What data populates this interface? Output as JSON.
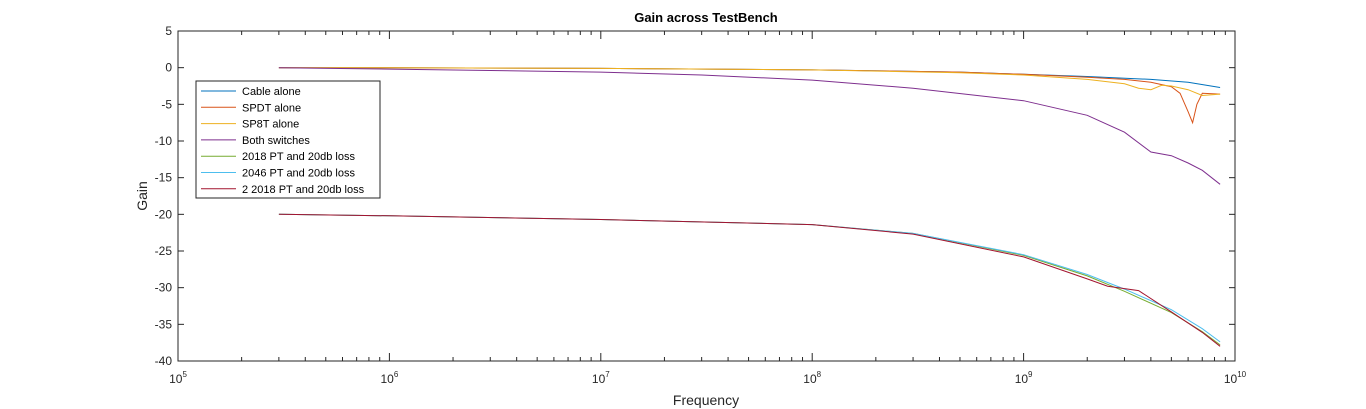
{
  "chart_data": {
    "type": "line",
    "title": "Gain across TestBench",
    "xlabel": "Frequency",
    "ylabel": "Gain",
    "xscale": "log",
    "xlim": [
      100000,
      10000000000
    ],
    "ylim": [
      -40,
      5
    ],
    "x_ticks": [
      {
        "value": 100000,
        "base": "10",
        "exp": "5"
      },
      {
        "value": 1000000,
        "base": "10",
        "exp": "6"
      },
      {
        "value": 10000000,
        "base": "10",
        "exp": "7"
      },
      {
        "value": 100000000,
        "base": "10",
        "exp": "8"
      },
      {
        "value": 1000000000,
        "base": "10",
        "exp": "9"
      },
      {
        "value": 10000000000,
        "base": "10",
        "exp": "10"
      }
    ],
    "y_ticks": [
      5,
      0,
      -5,
      -10,
      -15,
      -20,
      -25,
      -30,
      -35,
      -40
    ],
    "grid": false,
    "legend_position": "top-left",
    "series": [
      {
        "name": "Cable alone",
        "color": "#0072BD",
        "points": [
          [
            300000,
            0
          ],
          [
            1000000,
            0
          ],
          [
            10000000,
            -0.1
          ],
          [
            100000000,
            -0.3
          ],
          [
            500000000,
            -0.6
          ],
          [
            1000000000,
            -0.9
          ],
          [
            2000000000,
            -1.2
          ],
          [
            4000000000,
            -1.6
          ],
          [
            6000000000,
            -2.0
          ],
          [
            8500000000,
            -2.7
          ]
        ]
      },
      {
        "name": "SPDT alone",
        "color": "#D95319",
        "points": [
          [
            300000,
            0
          ],
          [
            1000000,
            0
          ],
          [
            10000000,
            -0.1
          ],
          [
            100000000,
            -0.3
          ],
          [
            500000000,
            -0.6
          ],
          [
            1000000000,
            -0.9
          ],
          [
            2000000000,
            -1.3
          ],
          [
            3000000000,
            -1.6
          ],
          [
            4000000000,
            -2.0
          ],
          [
            5000000000,
            -2.6
          ],
          [
            5500000000,
            -3.5
          ],
          [
            6000000000,
            -6.0
          ],
          [
            6300000000,
            -7.5
          ],
          [
            6600000000,
            -5.0
          ],
          [
            7000000000,
            -3.5
          ],
          [
            8500000000,
            -3.6
          ]
        ]
      },
      {
        "name": "SP8T alone",
        "color": "#EDB120",
        "points": [
          [
            300000,
            0
          ],
          [
            1000000,
            0
          ],
          [
            10000000,
            -0.1
          ],
          [
            100000000,
            -0.3
          ],
          [
            500000000,
            -0.7
          ],
          [
            1000000000,
            -1.0
          ],
          [
            2000000000,
            -1.6
          ],
          [
            3000000000,
            -2.2
          ],
          [
            3500000000,
            -2.8
          ],
          [
            4000000000,
            -3.0
          ],
          [
            4500000000,
            -2.4
          ],
          [
            5000000000,
            -2.5
          ],
          [
            6000000000,
            -3.0
          ],
          [
            7000000000,
            -3.8
          ],
          [
            8500000000,
            -3.6
          ]
        ]
      },
      {
        "name": "Both switches",
        "color": "#7E2F8E",
        "points": [
          [
            300000,
            0
          ],
          [
            1000000,
            -0.2
          ],
          [
            10000000,
            -0.6
          ],
          [
            30000000,
            -1.0
          ],
          [
            100000000,
            -1.7
          ],
          [
            300000000,
            -2.8
          ],
          [
            1000000000,
            -4.5
          ],
          [
            2000000000,
            -6.5
          ],
          [
            3000000000,
            -8.8
          ],
          [
            4000000000,
            -11.5
          ],
          [
            5000000000,
            -12.0
          ],
          [
            6000000000,
            -13.0
          ],
          [
            7000000000,
            -14.0
          ],
          [
            8500000000,
            -15.9
          ]
        ]
      },
      {
        "name": "2018 PT and 20db loss",
        "color": "#77AC30",
        "points": [
          [
            300000,
            -20.0
          ],
          [
            1000000,
            -20.2
          ],
          [
            10000000,
            -20.7
          ],
          [
            100000000,
            -21.4
          ],
          [
            300000000,
            -22.6
          ],
          [
            1000000000,
            -25.6
          ],
          [
            2000000000,
            -28.4
          ],
          [
            3000000000,
            -30.5
          ],
          [
            5000000000,
            -33.4
          ],
          [
            7000000000,
            -36.0
          ],
          [
            8500000000,
            -37.8
          ]
        ]
      },
      {
        "name": "2046 PT and 20db loss",
        "color": "#4DBEEE",
        "points": [
          [
            300000,
            -20.0
          ],
          [
            1000000,
            -20.2
          ],
          [
            10000000,
            -20.7
          ],
          [
            100000000,
            -21.4
          ],
          [
            300000000,
            -22.6
          ],
          [
            1000000000,
            -25.5
          ],
          [
            2000000000,
            -28.2
          ],
          [
            3000000000,
            -30.2
          ],
          [
            5000000000,
            -33.0
          ],
          [
            7000000000,
            -35.6
          ],
          [
            8500000000,
            -37.4
          ]
        ]
      },
      {
        "name": "2 2018 PT and 20db loss",
        "color": "#A2142F",
        "points": [
          [
            300000,
            -20.0
          ],
          [
            1000000,
            -20.2
          ],
          [
            10000000,
            -20.7
          ],
          [
            100000000,
            -21.4
          ],
          [
            300000000,
            -22.7
          ],
          [
            1000000000,
            -25.8
          ],
          [
            2000000000,
            -28.8
          ],
          [
            2500000000,
            -29.8
          ],
          [
            3500000000,
            -30.4
          ],
          [
            5000000000,
            -33.3
          ],
          [
            7000000000,
            -36.1
          ],
          [
            8500000000,
            -38.0
          ]
        ]
      }
    ]
  }
}
